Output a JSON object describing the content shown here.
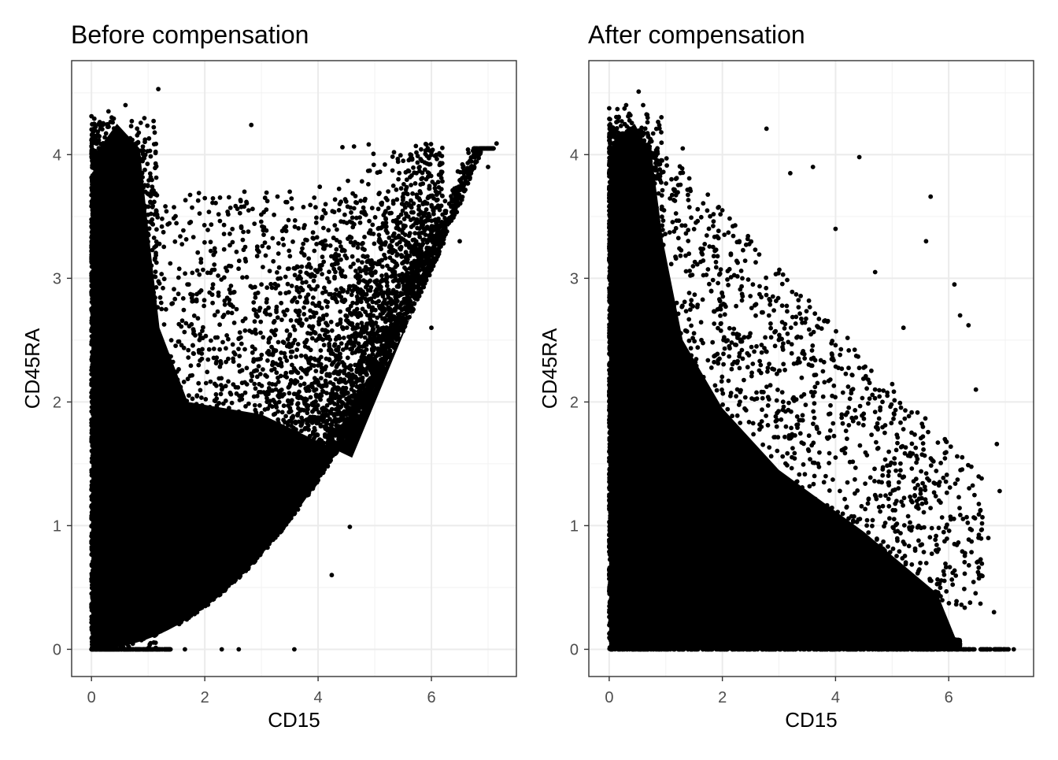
{
  "chart_data": [
    {
      "type": "scatter",
      "title": "Before compensation",
      "xlabel": "CD15",
      "ylabel": "CD45RA",
      "xlim": [
        -0.35,
        7.5
      ],
      "ylim": [
        -0.22,
        4.76
      ],
      "x_ticks": [
        0,
        2,
        4,
        6
      ],
      "y_ticks": [
        0,
        1,
        2,
        3,
        4
      ],
      "x_tick_labels": [
        "0",
        "2",
        "4",
        "6"
      ],
      "y_tick_labels": [
        "0",
        "1",
        "2",
        "3",
        "4"
      ],
      "grid": true,
      "point_color": "#000000",
      "approx_points": [
        [
          1.18,
          4.53
        ],
        [
          2.82,
          4.24
        ],
        [
          4.43,
          4.06
        ],
        [
          7.15,
          4.09
        ],
        [
          5.63,
          3.97
        ],
        [
          4.03,
          3.74
        ],
        [
          3.5,
          3.7
        ],
        [
          2.7,
          3.7
        ],
        [
          5.6,
          3.6
        ],
        [
          4.1,
          3.55
        ],
        [
          4.6,
          3.45
        ],
        [
          5.3,
          3.3
        ],
        [
          3.3,
          3.2
        ],
        [
          3.0,
          2.95
        ],
        [
          4.7,
          2.9
        ],
        [
          5.5,
          2.6
        ],
        [
          3.8,
          2.5
        ],
        [
          2.5,
          2.35
        ],
        [
          4.56,
          0.99
        ],
        [
          4.24,
          0.6
        ],
        [
          3.58,
          0.0
        ],
        [
          2.6,
          0.0
        ],
        [
          2.3,
          0.0
        ],
        [
          1.65,
          0.0
        ],
        [
          0.2,
          0.0
        ],
        [
          6.0,
          2.6
        ],
        [
          6.5,
          3.3
        ],
        [
          7.0,
          3.9
        ],
        [
          0.6,
          4.4
        ],
        [
          0.3,
          4.35
        ]
      ]
    },
    {
      "type": "scatter",
      "title": "After compensation",
      "xlabel": "CD15",
      "ylabel": "CD45RA",
      "xlim": [
        -0.36,
        7.5
      ],
      "ylim": [
        -0.22,
        4.76
      ],
      "x_ticks": [
        0,
        2,
        4,
        6
      ],
      "y_ticks": [
        0,
        1,
        2,
        3,
        4
      ],
      "x_tick_labels": [
        "0",
        "2",
        "4",
        "6"
      ],
      "y_tick_labels": [
        "0",
        "1",
        "2",
        "3",
        "4"
      ],
      "grid": true,
      "point_color": "#000000",
      "approx_points": [
        [
          0.52,
          4.51
        ],
        [
          2.78,
          4.21
        ],
        [
          4.42,
          3.98
        ],
        [
          5.68,
          3.66
        ],
        [
          3.6,
          3.9
        ],
        [
          3.2,
          3.85
        ],
        [
          4.7,
          3.05
        ],
        [
          5.6,
          3.3
        ],
        [
          6.1,
          2.95
        ],
        [
          6.2,
          2.7
        ],
        [
          6.35,
          2.62
        ],
        [
          6.48,
          2.1
        ],
        [
          6.85,
          1.66
        ],
        [
          6.9,
          1.28
        ],
        [
          6.7,
          0.9
        ],
        [
          6.8,
          0.3
        ],
        [
          7.15,
          0.0
        ],
        [
          6.6,
          0.0
        ],
        [
          6.3,
          0.0
        ],
        [
          2.0,
          3.55
        ],
        [
          2.3,
          3.3
        ],
        [
          1.3,
          4.05
        ],
        [
          0.3,
          4.4
        ],
        [
          0.6,
          4.4
        ],
        [
          5.2,
          2.6
        ],
        [
          4.0,
          3.4
        ]
      ]
    }
  ]
}
